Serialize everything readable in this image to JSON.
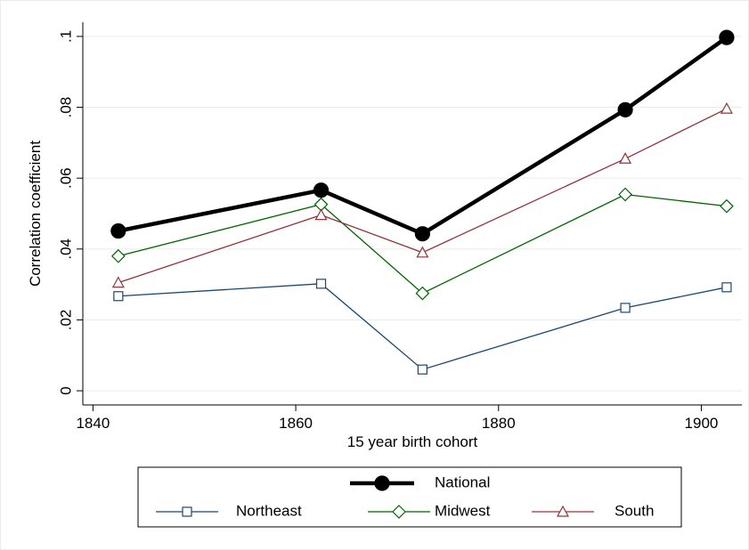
{
  "chart_data": {
    "type": "line",
    "x_label": "15 year birth cohort",
    "y_label": "Correlation coefficient",
    "x": [
      1842.5,
      1862.5,
      1872.5,
      1892.5,
      1902.5
    ],
    "xlim": [
      1839,
      1904
    ],
    "xticks": [
      1840,
      1860,
      1880,
      1900
    ],
    "ylim": [
      -0.004,
      0.104
    ],
    "yticks": [
      0,
      {
        "value": 0.02,
        "label": ".02"
      },
      {
        "value": 0.04,
        "label": ".04"
      },
      {
        "value": 0.06,
        "label": ".06"
      },
      {
        "value": 0.08,
        "label": ".08"
      },
      {
        "value": 0.1,
        "label": ".1"
      }
    ],
    "grid": true,
    "series": [
      {
        "name": "National",
        "color": "#000000",
        "marker": "circle",
        "values": [
          0.0451,
          0.0566,
          0.0443,
          0.0793,
          0.0997
        ]
      },
      {
        "name": "Northeast",
        "color": "#1a476f",
        "marker": "square",
        "values": [
          0.0267,
          0.0302,
          0.006,
          0.0234,
          0.0292
        ]
      },
      {
        "name": "Midwest",
        "color": "#006400",
        "marker": "diamond",
        "values": [
          0.038,
          0.0526,
          0.0275,
          0.0554,
          0.0521
        ]
      },
      {
        "name": "South",
        "color": "#90353b",
        "marker": "triangle",
        "values": [
          0.0305,
          0.0496,
          0.039,
          0.0655,
          0.0796
        ]
      }
    ]
  }
}
